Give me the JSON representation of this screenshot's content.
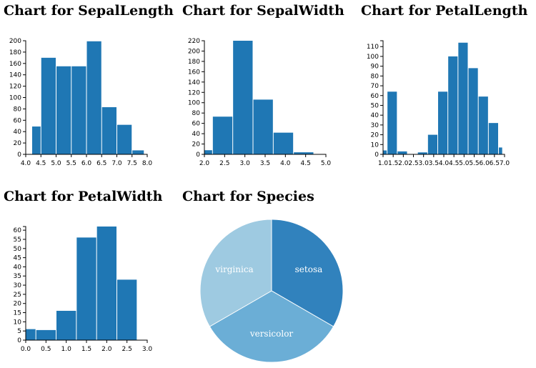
{
  "chart_data": [
    {
      "type": "bar",
      "title": "Chart for SepalLength",
      "bin_edges": [
        4.0,
        4.5,
        5.0,
        5.5,
        6.0,
        6.5,
        7.0,
        7.5,
        8.0
      ],
      "bins": [
        {
          "x0": 4.2,
          "x1": 4.5,
          "y": 49
        },
        {
          "x0": 4.5,
          "x1": 5.0,
          "y": 170
        },
        {
          "x0": 5.0,
          "x1": 5.5,
          "y": 155
        },
        {
          "x0": 5.5,
          "x1": 6.0,
          "y": 155
        },
        {
          "x0": 6.0,
          "x1": 6.5,
          "y": 199
        },
        {
          "x0": 6.5,
          "x1": 7.0,
          "y": 83
        },
        {
          "x0": 7.0,
          "x1": 7.5,
          "y": 52
        },
        {
          "x0": 7.5,
          "x1": 7.9,
          "y": 7
        }
      ],
      "xlim": [
        4.0,
        8.0
      ],
      "xticks": [
        "4.0",
        "4.5",
        "5.0",
        "5.5",
        "6.0",
        "6.5",
        "7.0",
        "7.5",
        "8.0"
      ],
      "ylim": [
        0,
        200
      ],
      "yticks": [
        "0",
        "20",
        "40",
        "60",
        "80",
        "100",
        "120",
        "140",
        "160",
        "180",
        "200"
      ],
      "color": "#1f77b4"
    },
    {
      "type": "bar",
      "title": "Chart for SepalWidth",
      "bins": [
        {
          "x0": 2.0,
          "x1": 2.2,
          "y": 8
        },
        {
          "x0": 2.2,
          "x1": 2.7,
          "y": 73
        },
        {
          "x0": 2.7,
          "x1": 3.2,
          "y": 220
        },
        {
          "x0": 3.2,
          "x1": 3.7,
          "y": 106
        },
        {
          "x0": 3.7,
          "x1": 4.2,
          "y": 42
        },
        {
          "x0": 4.2,
          "x1": 4.7,
          "y": 4
        }
      ],
      "xlim": [
        2.0,
        5.0
      ],
      "xticks": [
        "2.0",
        "2.5",
        "3.0",
        "3.5",
        "4.0",
        "4.5",
        "5.0"
      ],
      "ylim": [
        0,
        220
      ],
      "yticks": [
        "0",
        "20",
        "40",
        "60",
        "80",
        "100",
        "120",
        "140",
        "160",
        "180",
        "200",
        "220"
      ],
      "color": "#1f77b4"
    },
    {
      "type": "bar",
      "title": "Chart for PetalLength",
      "bins": [
        {
          "x0": 1.0,
          "x1": 1.2,
          "y": 4
        },
        {
          "x0": 1.2,
          "x1": 1.7,
          "y": 64
        },
        {
          "x0": 1.7,
          "x1": 2.2,
          "y": 3
        },
        {
          "x0": 2.2,
          "x1": 2.7,
          "y": 0
        },
        {
          "x0": 2.7,
          "x1": 3.2,
          "y": 2
        },
        {
          "x0": 3.2,
          "x1": 3.7,
          "y": 20
        },
        {
          "x0": 3.7,
          "x1": 4.2,
          "y": 64
        },
        {
          "x0": 4.2,
          "x1": 4.7,
          "y": 100
        },
        {
          "x0": 4.7,
          "x1": 5.2,
          "y": 114
        },
        {
          "x0": 5.2,
          "x1": 5.7,
          "y": 88
        },
        {
          "x0": 5.7,
          "x1": 6.2,
          "y": 59
        },
        {
          "x0": 6.2,
          "x1": 6.7,
          "y": 32
        },
        {
          "x0": 6.7,
          "x1": 6.9,
          "y": 7
        }
      ],
      "xlim": [
        1.0,
        7.0
      ],
      "xticks": [
        "1.0",
        "1.5",
        "2.0",
        "2.5",
        "3.0",
        "3.5",
        "4.0",
        "4.5",
        "5.0",
        "5.5",
        "6.0",
        "6.5",
        "7.0"
      ],
      "ylim": [
        0,
        116
      ],
      "yticks": [
        "0",
        "10",
        "20",
        "30",
        "40",
        "50",
        "60",
        "70",
        "80",
        "90",
        "100",
        "110"
      ],
      "color": "#1f77b4"
    },
    {
      "type": "bar",
      "title": "Chart for PetalWidth",
      "bins": [
        {
          "x0": 0.0,
          "x1": 0.25,
          "y": 6
        },
        {
          "x0": 0.25,
          "x1": 0.75,
          "y": 5.5
        },
        {
          "x0": 0.75,
          "x1": 1.25,
          "y": 16
        },
        {
          "x0": 1.25,
          "x1": 1.75,
          "y": 56
        },
        {
          "x0": 1.75,
          "x1": 2.25,
          "y": 62
        },
        {
          "x0": 2.25,
          "x1": 2.75,
          "y": 33
        }
      ],
      "xlim": [
        0.0,
        3.0
      ],
      "xticks": [
        "0.0",
        "0.5",
        "1.0",
        "1.5",
        "2.0",
        "2.5",
        "3.0"
      ],
      "ylim": [
        0,
        62
      ],
      "yticks": [
        "0",
        "5",
        "10",
        "15",
        "20",
        "25",
        "30",
        "35",
        "40",
        "45",
        "50",
        "55",
        "60"
      ],
      "color": "#1f77b4"
    },
    {
      "type": "pie",
      "title": "Chart for Species",
      "slices": [
        {
          "label": "setosa",
          "value": 1,
          "color": "#3182bd"
        },
        {
          "label": "versicolor",
          "value": 1,
          "color": "#6baed6"
        },
        {
          "label": "virginica",
          "value": 1,
          "color": "#9ecae1"
        }
      ]
    }
  ]
}
